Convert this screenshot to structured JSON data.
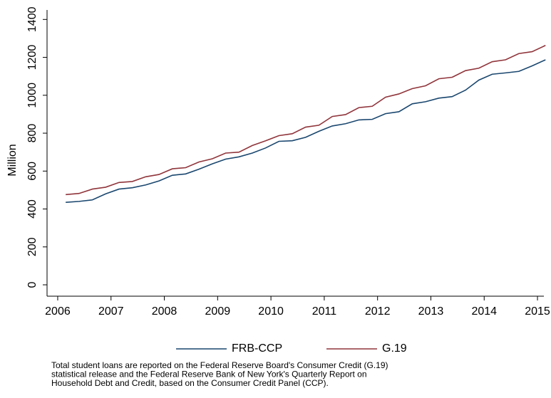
{
  "chart_data": {
    "type": "line",
    "y_label": "Million",
    "x": [
      2006.15,
      2006.4,
      2006.65,
      2006.9,
      2007.15,
      2007.4,
      2007.65,
      2007.9,
      2008.15,
      2008.4,
      2008.65,
      2008.9,
      2009.15,
      2009.4,
      2009.65,
      2009.9,
      2010.15,
      2010.4,
      2010.65,
      2010.9,
      2011.15,
      2011.4,
      2011.65,
      2011.9,
      2012.15,
      2012.4,
      2012.65,
      2012.9,
      2013.15,
      2013.4,
      2013.65,
      2013.9,
      2014.15,
      2014.4,
      2014.65,
      2014.9,
      2015.15
    ],
    "series": [
      {
        "name": "FRB-CCP",
        "color": "#1a476f",
        "values": [
          435,
          440,
          448,
          480,
          505,
          512,
          527,
          548,
          578,
          585,
          610,
          638,
          663,
          675,
          695,
          722,
          757,
          760,
          778,
          810,
          838,
          850,
          870,
          873,
          903,
          913,
          955,
          966,
          985,
          993,
          1027,
          1080,
          1111,
          1118,
          1126,
          1155,
          1187
        ]
      },
      {
        "name": "G.19",
        "color": "#90353b",
        "values": [
          476,
          482,
          505,
          515,
          540,
          545,
          570,
          582,
          612,
          618,
          648,
          665,
          695,
          700,
          735,
          760,
          787,
          797,
          832,
          842,
          888,
          898,
          935,
          942,
          990,
          1007,
          1035,
          1050,
          1087,
          1095,
          1130,
          1143,
          1177,
          1187,
          1220,
          1230,
          1263
        ]
      }
    ],
    "xlim": [
      2005.8,
      2015.2
    ],
    "xticks": [
      2006,
      2007,
      2008,
      2009,
      2010,
      2011,
      2012,
      2013,
      2014,
      2015
    ],
    "ylim": [
      -60,
      1450
    ],
    "yticks": [
      0,
      200,
      400,
      600,
      800,
      1000,
      1200,
      1400
    ],
    "legend": "bottom",
    "note": [
      "Total student loans are reported on the Federal Reserve Board's Consumer Credit (G.19)",
      "statistical release and the Federal Reserve Bank of New York's Quarterly Report on",
      "Household Debt and Credit, based on the Consumer Credit Panel (CCP)."
    ]
  }
}
